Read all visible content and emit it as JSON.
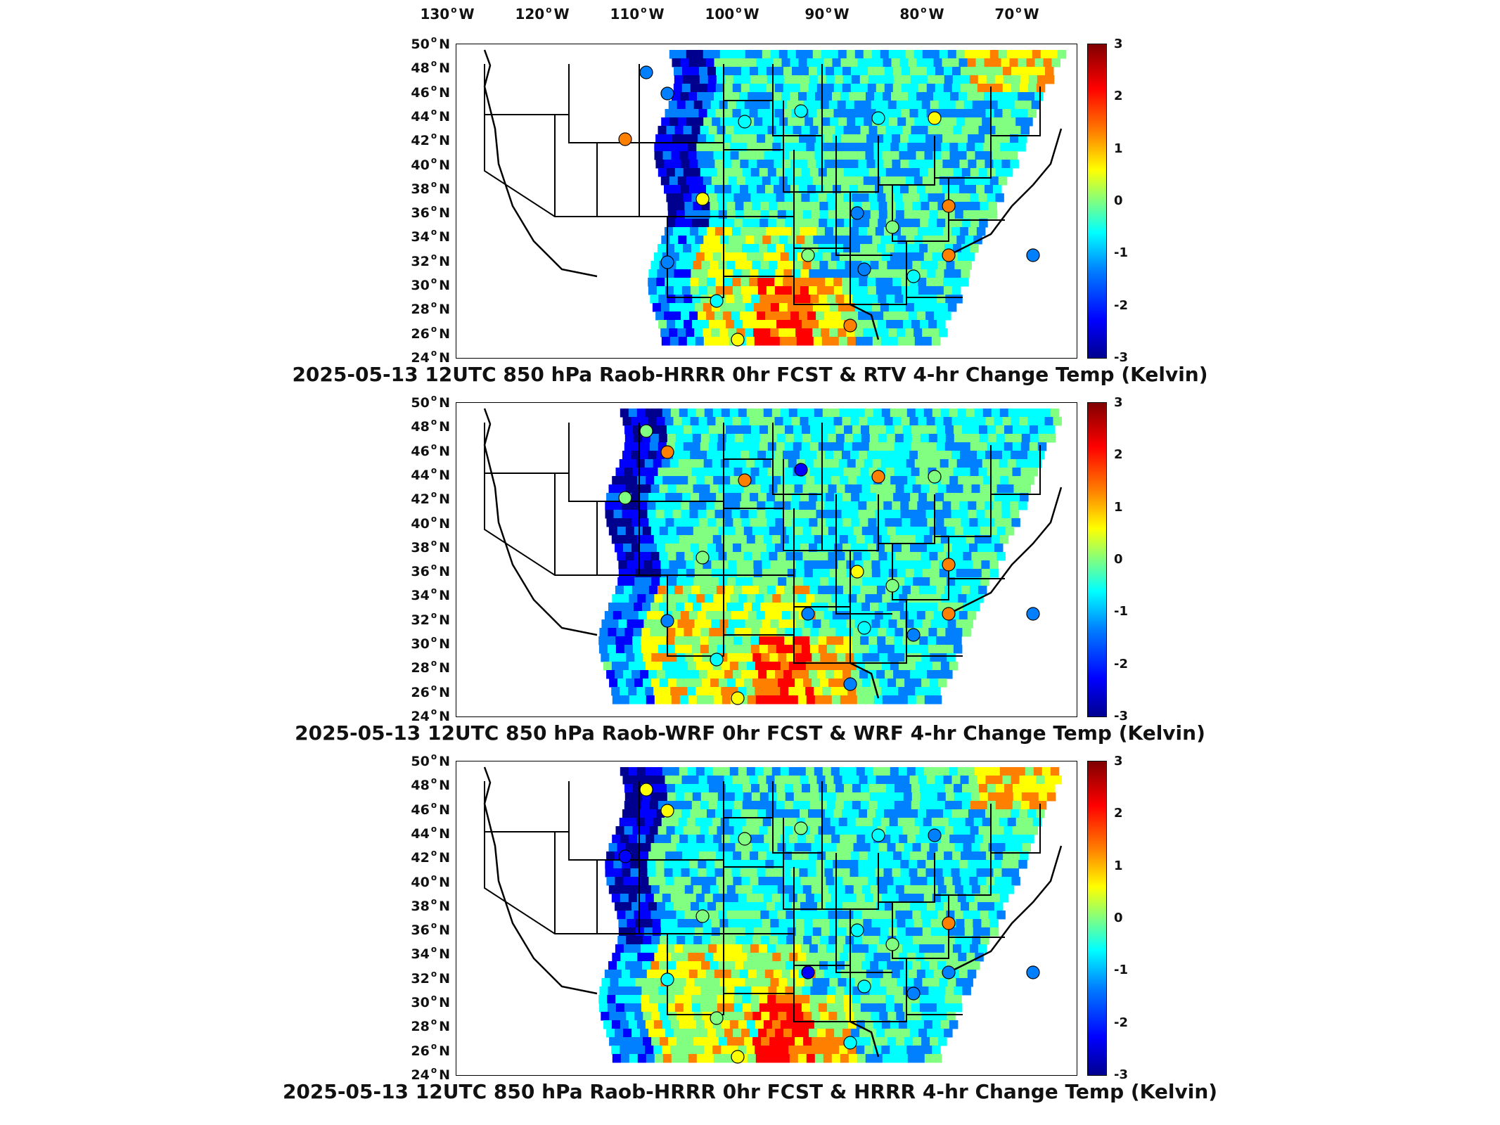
{
  "lon_labels": [
    {
      "deg": "130",
      "hem": "W"
    },
    {
      "deg": "120",
      "hem": "W"
    },
    {
      "deg": "110",
      "hem": "W"
    },
    {
      "deg": "100",
      "hem": "W"
    },
    {
      "deg": "90",
      "hem": "W"
    },
    {
      "deg": "80",
      "hem": "W"
    },
    {
      "deg": "70",
      "hem": "W"
    }
  ],
  "lat_labels": [
    {
      "deg": "50",
      "hem": "N"
    },
    {
      "deg": "48",
      "hem": "N"
    },
    {
      "deg": "46",
      "hem": "N"
    },
    {
      "deg": "44",
      "hem": "N"
    },
    {
      "deg": "42",
      "hem": "N"
    },
    {
      "deg": "40",
      "hem": "N"
    },
    {
      "deg": "38",
      "hem": "N"
    },
    {
      "deg": "36",
      "hem": "N"
    },
    {
      "deg": "34",
      "hem": "N"
    },
    {
      "deg": "32",
      "hem": "N"
    },
    {
      "deg": "30",
      "hem": "N"
    },
    {
      "deg": "28",
      "hem": "N"
    },
    {
      "deg": "26",
      "hem": "N"
    },
    {
      "deg": "24",
      "hem": "N"
    }
  ],
  "colorbar": {
    "ticks": [
      "3",
      "2",
      "1",
      "0",
      "-1",
      "-2",
      "-3"
    ],
    "colors": [
      "#00008f",
      "#0000ff",
      "#0080ff",
      "#00ffff",
      "#80ff80",
      "#ffff00",
      "#ff8000",
      "#ff0000",
      "#800000"
    ]
  },
  "panels": [
    {
      "title": "2025-05-13 12UTC 850 hPa Raob-HRRR 0hr FCST & RTV 4-hr Change Temp (Kelvin)"
    },
    {
      "title": "2025-05-13 12UTC 850 hPa Raob-WRF 0hr FCST & WRF 4-hr Change Temp (Kelvin)"
    },
    {
      "title": "2025-05-13 12UTC 850 hPa Raob-HRRR 0hr FCST & HRRR 4-hr Change Temp (Kelvin)"
    }
  ]
}
